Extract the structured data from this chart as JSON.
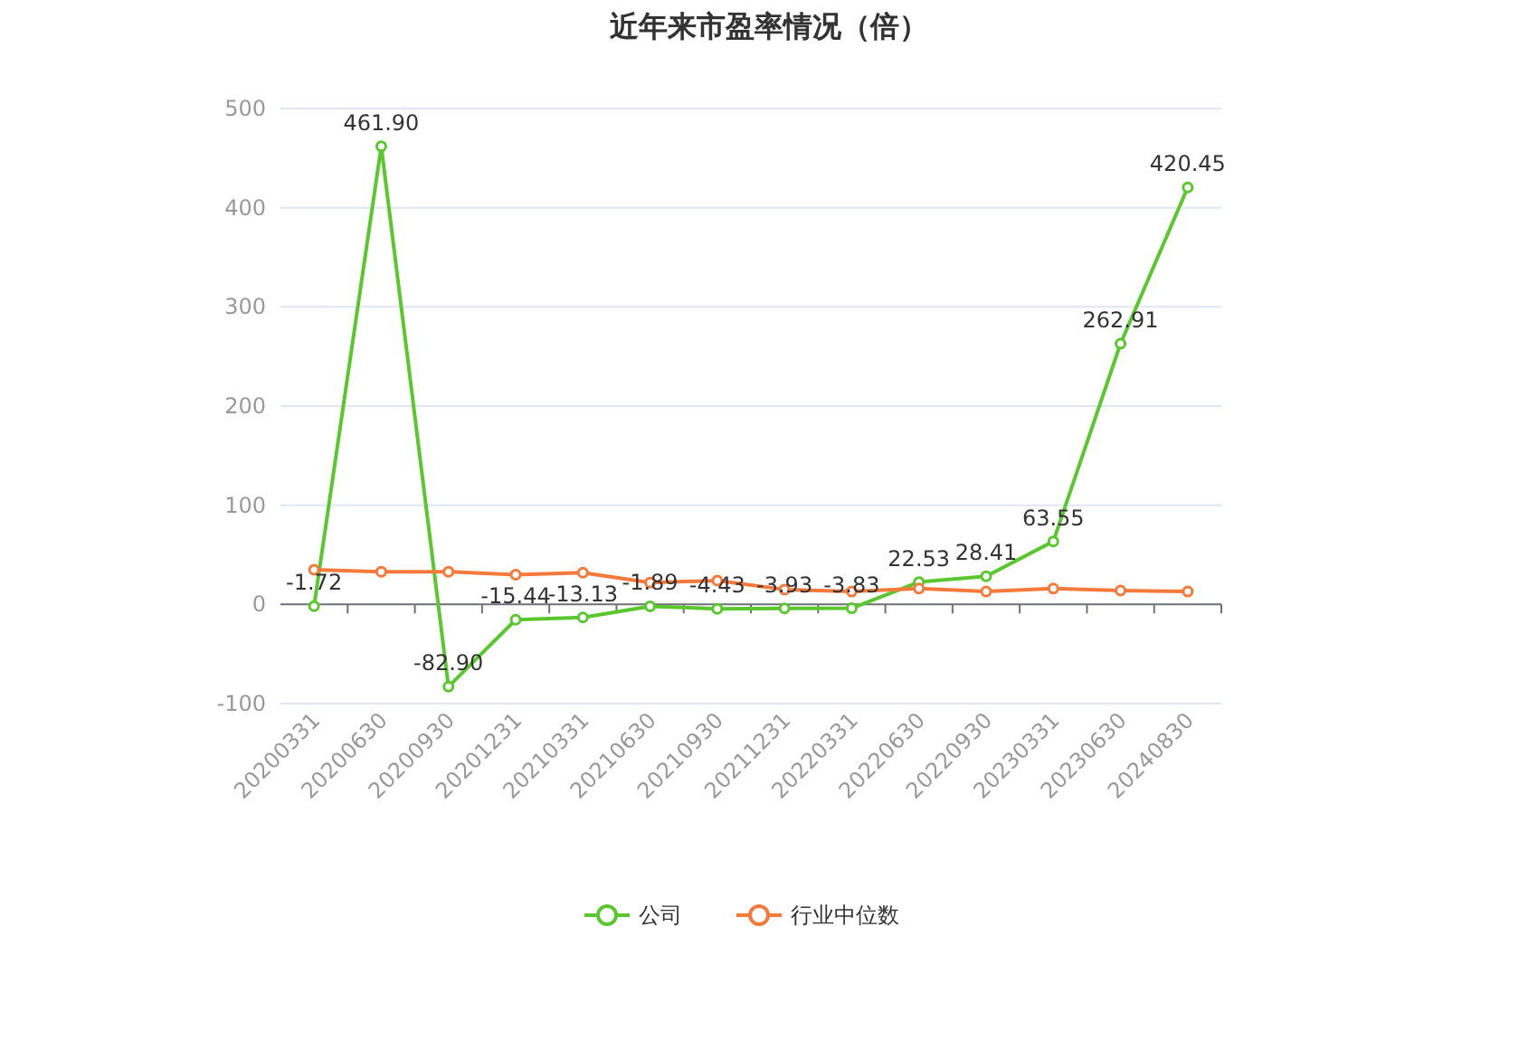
{
  "chart_data": {
    "type": "line",
    "title": "近年来市盈率情况（倍）",
    "categories": [
      "20200331",
      "20200630",
      "20200930",
      "20201231",
      "20210331",
      "20210630",
      "20210930",
      "20211231",
      "20220331",
      "20220630",
      "20220930",
      "20230331",
      "20230630",
      "20240830"
    ],
    "series": [
      {
        "name": "公司",
        "color": "#5ac72e",
        "values": [
          -1.72,
          461.9,
          -82.9,
          -15.44,
          -13.13,
          -1.89,
          -4.43,
          -3.93,
          -3.83,
          22.53,
          28.41,
          63.55,
          262.91,
          420.45
        ],
        "value_labels": [
          "-1.72",
          "461.90",
          "-82.90",
          "-15.44",
          "-13.13",
          "-1.89",
          "-4.43",
          "-3.93",
          "-3.83",
          "22.53",
          "28.41",
          "63.55",
          "262.91",
          "420.45"
        ]
      },
      {
        "name": "行业中位数",
        "color": "#f4793b",
        "values": [
          35,
          33,
          33,
          30,
          32,
          22,
          24,
          15,
          13,
          16,
          13,
          16,
          14,
          13
        ]
      }
    ],
    "ylim": [
      -100,
      500
    ],
    "yticks": [
      -100,
      0,
      100,
      200,
      300,
      400,
      500
    ],
    "grid": "y",
    "legend": "bottom",
    "marker": "circle",
    "line_style": "solid"
  }
}
